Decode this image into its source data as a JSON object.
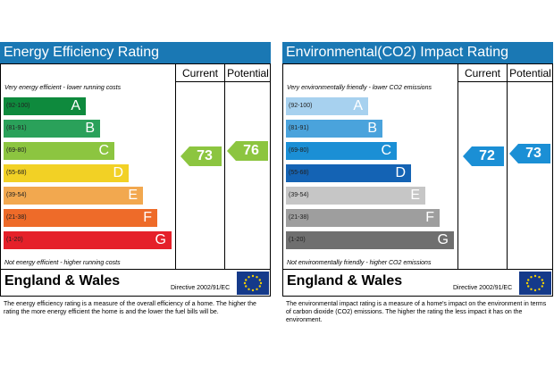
{
  "left": {
    "title": "Energy Efficiency Rating",
    "col_current": "Current",
    "col_potential": "Potential",
    "top_label": "Very energy efficient - lower running costs",
    "bottom_label": "Not energy efficient - higher running costs",
    "bands": [
      {
        "range": "(92-100)",
        "letter": "A",
        "color": "#0e8a3d"
      },
      {
        "range": "(81-91)",
        "letter": "B",
        "color": "#2aa15a"
      },
      {
        "range": "(69-80)",
        "letter": "C",
        "color": "#8cc540"
      },
      {
        "range": "(55-68)",
        "letter": "D",
        "color": "#f2d125"
      },
      {
        "range": "(39-54)",
        "letter": "E",
        "color": "#f2a84f"
      },
      {
        "range": "(21-38)",
        "letter": "F",
        "color": "#ee6b29"
      },
      {
        "range": "(1-20)",
        "letter": "G",
        "color": "#e5202a"
      }
    ],
    "current_value": "73",
    "potential_value": "76",
    "current_band": "C",
    "potential_band": "C",
    "arrow_color": "#8cc540",
    "region": "England & Wales",
    "directive": "Directive 2002/91/EC",
    "description": "The energy efficiency rating is a measure of the overall efficiency of a home. The higher the rating the more energy efficient the home is and the lower the fuel bills will be."
  },
  "right": {
    "title": "Environmental(CO2) Impact Rating",
    "col_current": "Current",
    "col_potential": "Potential",
    "top_label": "Very environmentally friendly - lower CO2 emissions",
    "bottom_label": "Not environmentally friendly - higher CO2 emissions",
    "bands": [
      {
        "range": "(92-100)",
        "letter": "A",
        "color": "#a7d1ef"
      },
      {
        "range": "(81-91)",
        "letter": "B",
        "color": "#4aa3dc"
      },
      {
        "range": "(69-80)",
        "letter": "C",
        "color": "#1b8fd5"
      },
      {
        "range": "(55-68)",
        "letter": "D",
        "color": "#1463b4"
      },
      {
        "range": "(39-54)",
        "letter": "E",
        "color": "#c6c6c6"
      },
      {
        "range": "(21-38)",
        "letter": "F",
        "color": "#9e9e9e"
      },
      {
        "range": "(1-20)",
        "letter": "G",
        "color": "#6f6f6f"
      }
    ],
    "current_value": "72",
    "potential_value": "73",
    "current_band": "C",
    "potential_band": "C",
    "arrow_color": "#1b8fd5",
    "region": "England & Wales",
    "directive": "Directive 2002/91/EC",
    "description": "The environmental impact rating is a measure of a home's impact on the environment in terms of carbon dioxide (CO2) emissions. The higher the rating the less impact it has on the environment."
  }
}
